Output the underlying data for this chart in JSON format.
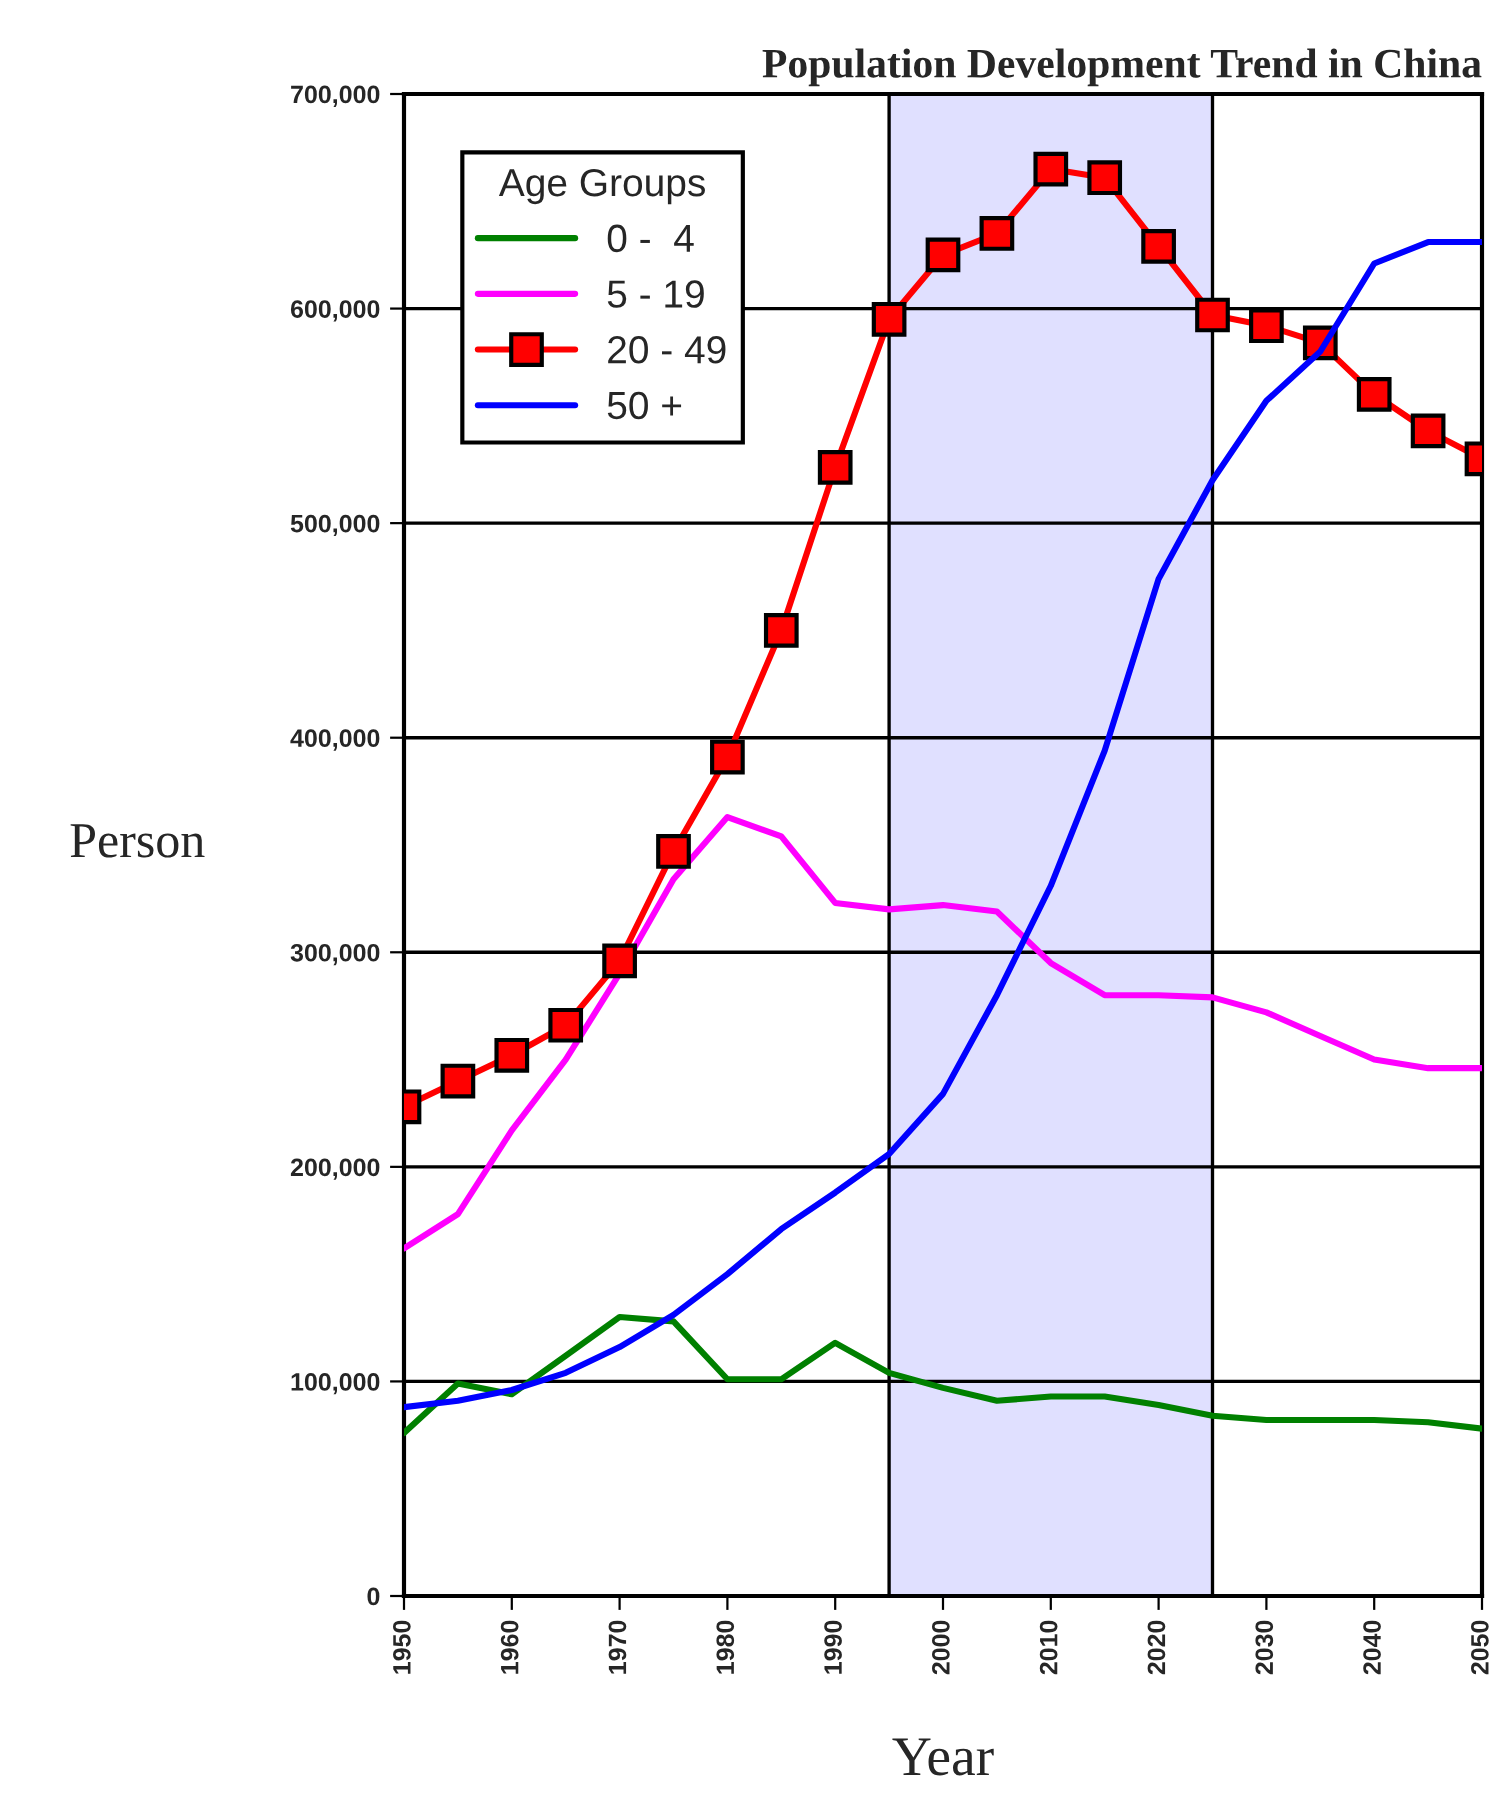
{
  "chart_data": {
    "type": "line",
    "title": "Population Development Trend in China",
    "xlabel": "Year",
    "ylabel": "Person",
    "legend_title": "Age Groups",
    "legend": "top left",
    "grid": "y",
    "x": [
      1950,
      1955,
      1960,
      1965,
      1970,
      1975,
      1980,
      1985,
      1990,
      1995,
      2000,
      2005,
      2010,
      2015,
      2020,
      2025,
      2030,
      2035,
      2040,
      2045,
      2050
    ],
    "xlim": [
      1950,
      2050
    ],
    "xticks": [
      1950,
      1960,
      1970,
      1980,
      1990,
      2000,
      2010,
      2020,
      2030,
      2040,
      2050
    ],
    "ylim": [
      0,
      700000
    ],
    "yticks": [
      {
        "value": 0,
        "label": "0"
      },
      {
        "value": 100000,
        "label": "100,000"
      },
      {
        "value": 200000,
        "label": "200,000"
      },
      {
        "value": 300000,
        "label": "300,000"
      },
      {
        "value": 400000,
        "label": "400,000"
      },
      {
        "value": 500000,
        "label": "500,000"
      },
      {
        "value": 600000,
        "label": "600,000"
      },
      {
        "value": 700000,
        "label": "700,000"
      }
    ],
    "bands": [
      {
        "axis": "x",
        "from": 1995,
        "to": 2025,
        "color": "#e0e0ff"
      }
    ],
    "series": [
      {
        "name": "0 -  4",
        "color": "#008000",
        "marker": "none",
        "values": [
          76000,
          99000,
          94000,
          112000,
          130000,
          128000,
          101000,
          101000,
          118000,
          104000,
          97000,
          91000,
          93000,
          93000,
          89000,
          84000,
          82000,
          82000,
          82000,
          81000,
          78000
        ]
      },
      {
        "name": "5 - 19",
        "color": "#ff00ff",
        "marker": "none",
        "values": [
          162000,
          178000,
          217000,
          250000,
          290000,
          334000,
          363000,
          354000,
          323000,
          320000,
          322000,
          319000,
          295000,
          280000,
          280000,
          279000,
          272000,
          261000,
          250000,
          246000,
          246000
        ]
      },
      {
        "name": "20 - 49",
        "color": "#ff0000",
        "marker": "square",
        "values": [
          228000,
          240000,
          252000,
          266000,
          296000,
          347000,
          391000,
          450000,
          526000,
          595000,
          625000,
          635000,
          665000,
          661000,
          629000,
          597000,
          592000,
          584000,
          560000,
          543000,
          530000
        ]
      },
      {
        "name": "50 +",
        "color": "#0000ff",
        "marker": "none",
        "values": [
          88000,
          91000,
          96000,
          104000,
          116000,
          131000,
          150000,
          171000,
          188000,
          206000,
          234000,
          280000,
          331000,
          394000,
          474000,
          520000,
          557000,
          580000,
          621000,
          631000,
          631000
        ]
      }
    ]
  }
}
